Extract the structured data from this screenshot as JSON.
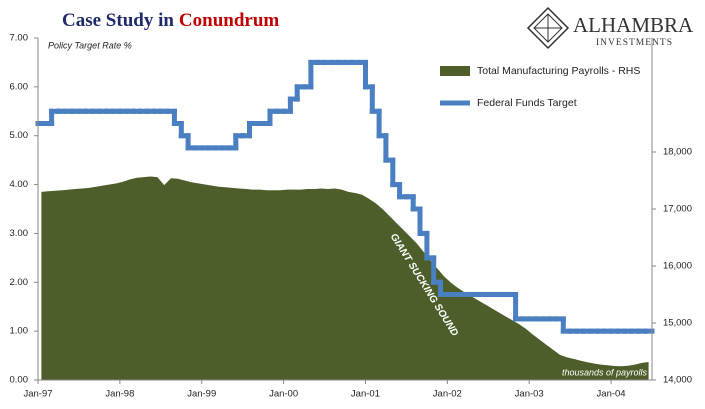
{
  "chart_data": {
    "type": "area_step",
    "title": "Case Study in",
    "title_highlight": "Conundrum",
    "logo": {
      "name": "ALHAMBRA",
      "tagline": "INVESTMENTS"
    },
    "y_axis_label": "Policy Target Rate %",
    "y2_axis_label": "thousands of payrolls",
    "annotation": "GIANT SUCKING SOUND",
    "legend": "upper right",
    "categories": [
      "Jan-97",
      null,
      null,
      null,
      null,
      null,
      null,
      null,
      null,
      null,
      null,
      null,
      "Jan-98",
      null,
      null,
      null,
      null,
      null,
      null,
      null,
      null,
      null,
      null,
      null,
      "Jan-99",
      null,
      null,
      null,
      null,
      null,
      null,
      null,
      null,
      null,
      null,
      null,
      "Jan-00",
      null,
      null,
      null,
      null,
      null,
      null,
      null,
      null,
      null,
      null,
      null,
      "Jan-01",
      null,
      null,
      null,
      null,
      null,
      null,
      null,
      null,
      null,
      null,
      null,
      "Jan-02",
      null,
      null,
      null,
      null,
      null,
      null,
      null,
      null,
      null,
      null,
      null,
      "Jan-03",
      null,
      null,
      null,
      null,
      null,
      null,
      null,
      null,
      null,
      null,
      null,
      "Jan-04",
      null,
      null,
      null,
      null,
      null
    ],
    "series": [
      {
        "name": "Total Manufacturing Payrolls - RHS",
        "type": "area",
        "axis": "y2",
        "color": "#4e5e2a",
        "values": [
          17300,
          17310,
          17320,
          17330,
          17340,
          17350,
          17360,
          17370,
          17390,
          17410,
          17430,
          17450,
          17480,
          17520,
          17550,
          17560,
          17570,
          17560,
          17420,
          17540,
          17530,
          17500,
          17470,
          17450,
          17430,
          17410,
          17390,
          17380,
          17370,
          17360,
          17350,
          17340,
          17340,
          17330,
          17330,
          17330,
          17340,
          17340,
          17340,
          17350,
          17350,
          17360,
          17350,
          17360,
          17340,
          17300,
          17280,
          17250,
          17180,
          17100,
          17000,
          16880,
          16760,
          16640,
          16520,
          16400,
          16250,
          16100,
          15960,
          15820,
          15710,
          15620,
          15540,
          15470,
          15400,
          15330,
          15260,
          15190,
          15120,
          15050,
          14980,
          14900,
          14800,
          14710,
          14620,
          14530,
          14440,
          14400,
          14370,
          14340,
          14310,
          14290,
          14270,
          14260,
          14245,
          14240,
          14250,
          14270,
          14300,
          14315
        ]
      },
      {
        "name": "Federal Funds Target",
        "type": "step",
        "color": "#4a7fc1",
        "values": [
          5.25,
          5.25,
          5.5,
          5.5,
          5.5,
          5.5,
          5.5,
          5.5,
          5.5,
          5.5,
          5.5,
          5.5,
          5.5,
          5.5,
          5.5,
          5.5,
          5.5,
          5.5,
          5.5,
          5.5,
          5.25,
          5.0,
          4.75,
          4.75,
          4.75,
          4.75,
          4.75,
          4.75,
          4.75,
          5.0,
          5.0,
          5.25,
          5.25,
          5.25,
          5.5,
          5.5,
          5.5,
          5.75,
          6.0,
          6.0,
          6.5,
          6.5,
          6.5,
          6.5,
          6.5,
          6.5,
          6.5,
          6.5,
          6.0,
          5.5,
          5.0,
          4.5,
          4.0,
          3.75,
          3.75,
          3.5,
          3.0,
          2.5,
          2.0,
          1.75,
          1.75,
          1.75,
          1.75,
          1.75,
          1.75,
          1.75,
          1.75,
          1.75,
          1.75,
          1.75,
          1.25,
          1.25,
          1.25,
          1.25,
          1.25,
          1.25,
          1.25,
          1.0,
          1.0,
          1.0,
          1.0,
          1.0,
          1.0,
          1.0,
          1.0,
          1.0,
          1.0,
          1.0,
          1.0,
          1.0
        ]
      }
    ],
    "ylim": [
      0,
      7
    ],
    "yticks": [
      {
        "value": 0,
        "label": "0.00"
      },
      {
        "value": 1,
        "label": "1.00"
      },
      {
        "value": 2,
        "label": "2.00"
      },
      {
        "value": 3,
        "label": "3.00"
      },
      {
        "value": 4,
        "label": "4.00"
      },
      {
        "value": 5,
        "label": "5.00"
      },
      {
        "value": 6,
        "label": "6.00"
      },
      {
        "value": 7,
        "label": "7.00"
      }
    ],
    "y2lim": [
      14000,
      20000
    ],
    "y2ticks": [
      {
        "value": 14000,
        "label": "14,000"
      },
      {
        "value": 15000,
        "label": "15,000"
      },
      {
        "value": 16000,
        "label": "16,000"
      },
      {
        "value": 17000,
        "label": "17,000"
      },
      {
        "value": 18000,
        "label": "18,000"
      }
    ]
  }
}
